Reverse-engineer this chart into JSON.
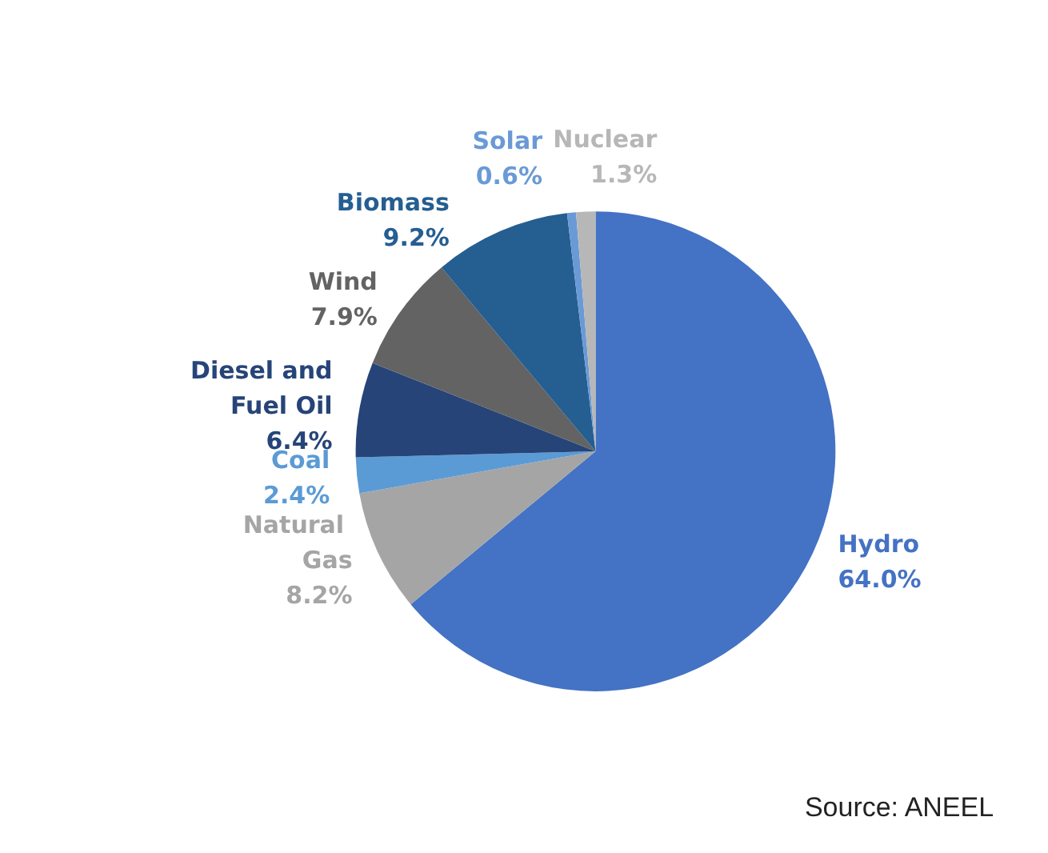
{
  "chart_data": {
    "type": "pie",
    "categories": [
      "Hydro",
      "Natural Gas",
      "Coal",
      "Diesel and Fuel Oil",
      "Wind",
      "Biomass",
      "Solar",
      "Nuclear"
    ],
    "values": [
      64.0,
      8.2,
      2.4,
      6.4,
      7.9,
      9.2,
      0.6,
      1.3
    ],
    "value_labels": [
      "64.0%",
      "8.2%",
      "2.4%",
      "6.4%",
      "7.9%",
      "9.2%",
      "0.6%",
      "1.3%"
    ],
    "colors": [
      "#4472c4",
      "#a5a5a5",
      "#5b9bd5",
      "#264478",
      "#636363",
      "#255e91",
      "#6a9ad6",
      "#b7b7b7"
    ],
    "annotations": [
      "Source: ANEEL"
    ]
  }
}
